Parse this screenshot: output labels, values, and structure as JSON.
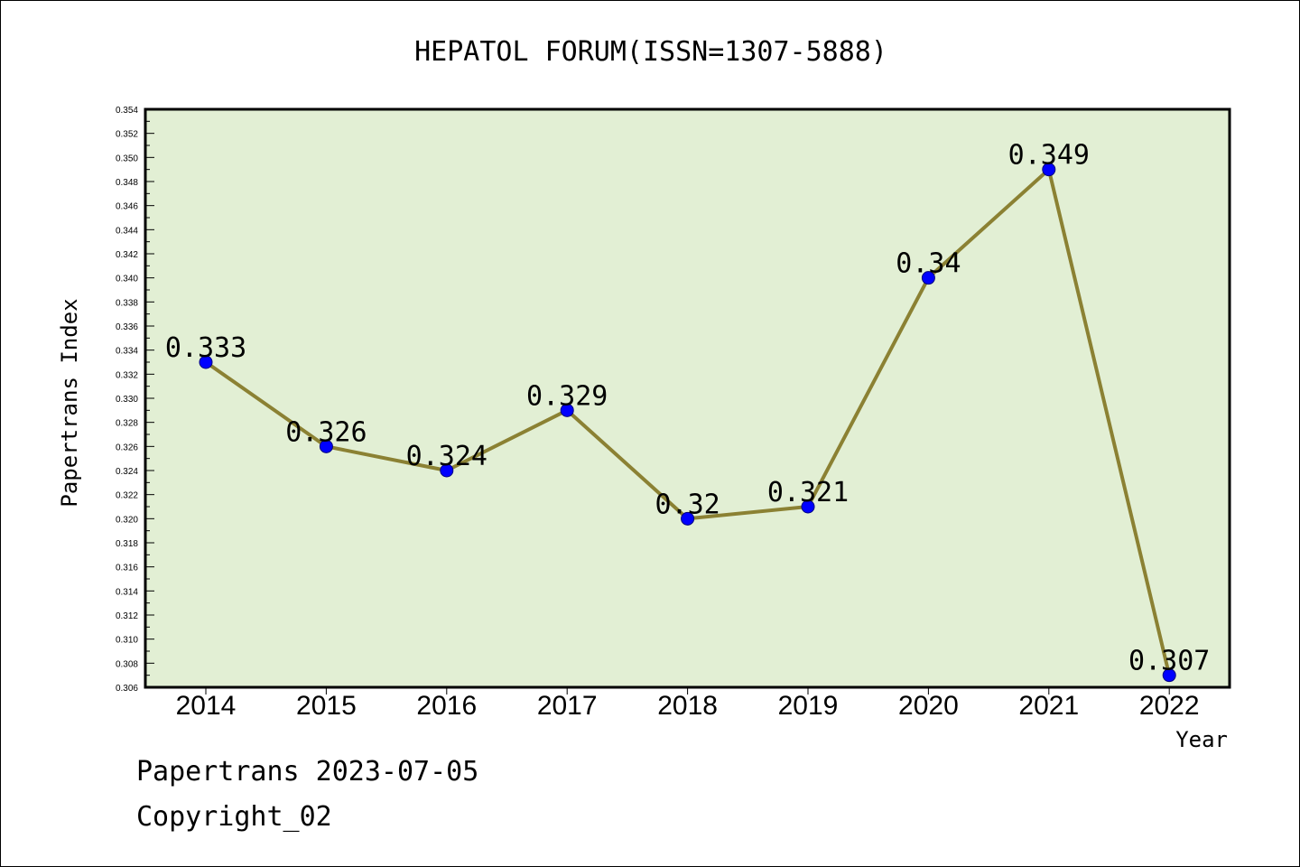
{
  "chart_data": {
    "type": "line",
    "title": "HEPATOL FORUM(ISSN=1307-5888)",
    "xlabel": "Year",
    "ylabel": "Papertrans Index",
    "categories": [
      "2014",
      "2015",
      "2016",
      "2017",
      "2018",
      "2019",
      "2020",
      "2021",
      "2022"
    ],
    "series": [
      {
        "values": [
          0.333,
          0.326,
          0.324,
          0.329,
          0.32,
          0.321,
          0.34,
          0.349,
          0.307
        ],
        "data_labels": [
          "0.333",
          "0.326",
          "0.324",
          "0.329",
          "0.32",
          "0.321",
          "0.34",
          "0.349",
          "0.307"
        ]
      }
    ],
    "ylim": [
      0.306,
      0.354
    ],
    "y_ticks": [
      "0.306",
      "0.308",
      "0.310",
      "0.312",
      "0.314",
      "0.316",
      "0.318",
      "0.320",
      "0.322",
      "0.324",
      "0.326",
      "0.328",
      "0.330",
      "0.332",
      "0.334",
      "0.336",
      "0.338",
      "0.340",
      "0.342",
      "0.344",
      "0.346",
      "0.348",
      "0.350",
      "0.352",
      "0.354"
    ],
    "grid": false,
    "colors": {
      "plot_background": "#e2efd4",
      "line": "#8b8133",
      "marker": "#0000ff"
    }
  },
  "footer": {
    "source": "Papertrans 2023-07-05",
    "copyright": "Copyright_02"
  }
}
